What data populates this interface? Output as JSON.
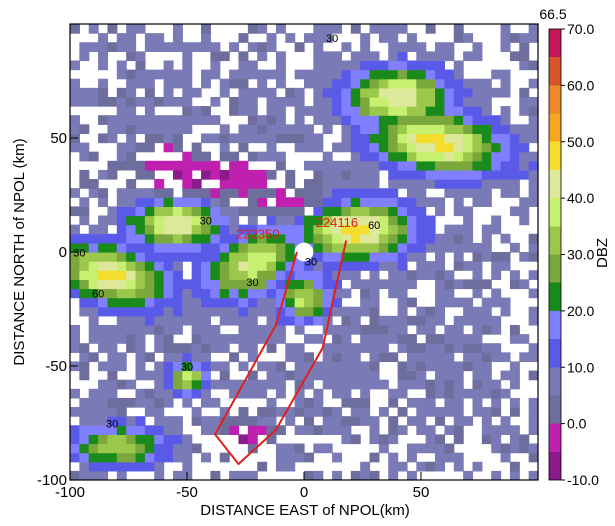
{
  "chart_data": {
    "type": "heatmap",
    "xlabel": "DISTANCE EAST of NPOL(km)",
    "ylabel": "DISTANCE NORTH of NPOL (km)",
    "xlim": [
      -100,
      100
    ],
    "ylim": [
      -100,
      100
    ],
    "xticks": [
      -100,
      -50,
      0,
      50
    ],
    "yticks": [
      -100,
      -50,
      0,
      50
    ],
    "colorbar": {
      "label": "DBZ",
      "max_label": "66.5",
      "range": [
        -10,
        70
      ],
      "tick_values": [
        70,
        60,
        50,
        40,
        30,
        20,
        10,
        0,
        -10
      ],
      "tick_labels": [
        "70.0",
        "60.0",
        "50.0",
        "40.0",
        "30.0",
        "20.0",
        "10.0",
        "0.0",
        "-10.0"
      ],
      "bins": [
        {
          "from": -10,
          "to": -5,
          "color": "#8b1a8b"
        },
        {
          "from": -5,
          "to": 0,
          "color": "#c020b0"
        },
        {
          "from": 0,
          "to": 5,
          "color": "#6e6e9e"
        },
        {
          "from": 5,
          "to": 10,
          "color": "#7a7ab6"
        },
        {
          "from": 10,
          "to": 15,
          "color": "#5a5ae8"
        },
        {
          "from": 15,
          "to": 20,
          "color": "#7f7fff"
        },
        {
          "from": 20,
          "to": 25,
          "color": "#1a8a1a"
        },
        {
          "from": 25,
          "to": 30,
          "color": "#7aa83c"
        },
        {
          "from": 30,
          "to": 35,
          "color": "#9bc84a"
        },
        {
          "from": 35,
          "to": 40,
          "color": "#c8f070"
        },
        {
          "from": 40,
          "to": 45,
          "color": "#dde89a"
        },
        {
          "from": 45,
          "to": 50,
          "color": "#f4dd2c"
        },
        {
          "from": 50,
          "to": 55,
          "color": "#f5a623"
        },
        {
          "from": 55,
          "to": 60,
          "color": "#ee8a2a"
        },
        {
          "from": 60,
          "to": 65,
          "color": "#d8552a"
        },
        {
          "from": 65,
          "to": 70,
          "color": "#c2185b"
        }
      ]
    },
    "storm_cells": [
      {
        "x": 22,
        "y": 10,
        "rx": 22,
        "ry": 12,
        "rot": 0,
        "dbz": 50
      },
      {
        "x": -55,
        "y": 13,
        "rx": 18,
        "ry": 10,
        "rot": 0,
        "dbz": 45
      },
      {
        "x": -82,
        "y": -10,
        "rx": 22,
        "ry": 11,
        "rot": -15,
        "dbz": 47
      },
      {
        "x": 40,
        "y": 68,
        "rx": 20,
        "ry": 12,
        "rot": 0,
        "dbz": 45
      },
      {
        "x": 57,
        "y": 48,
        "rx": 26,
        "ry": 12,
        "rot": -10,
        "dbz": 48
      },
      {
        "x": -22,
        "y": -5,
        "rx": 20,
        "ry": 12,
        "rot": 30,
        "dbz": 40
      },
      {
        "x": 0,
        "y": -20,
        "rx": 10,
        "ry": 10,
        "rot": 0,
        "dbz": 36
      },
      {
        "x": -50,
        "y": -55,
        "rx": 7,
        "ry": 6,
        "rot": 0,
        "dbz": 38
      },
      {
        "x": -80,
        "y": -85,
        "rx": 18,
        "ry": 8,
        "rot": 0,
        "dbz": 35
      }
    ],
    "low_reflectivity_zones": [
      {
        "x": -40,
        "y": 32,
        "rx": 30,
        "ry": 8,
        "rot": 0,
        "dbz": -7
      },
      {
        "x": -8,
        "y": 22,
        "rx": 18,
        "ry": 6,
        "rot": 0,
        "dbz": -3
      },
      {
        "x": -60,
        "y": 42,
        "rx": 10,
        "ry": 6,
        "rot": 0,
        "dbz": -7
      },
      {
        "x": -25,
        "y": -80,
        "rx": 8,
        "ry": 5,
        "rot": 0,
        "dbz": -7
      }
    ],
    "contour_labels": [
      {
        "text": "30",
        "x": -96,
        "y": -2
      },
      {
        "text": "30",
        "x": -42,
        "y": 12
      },
      {
        "text": "30",
        "x": -22,
        "y": -15
      },
      {
        "text": "30",
        "x": 3,
        "y": -6
      },
      {
        "text": "60",
        "x": -88,
        "y": -20
      },
      {
        "text": "60",
        "x": 30,
        "y": 10
      },
      {
        "text": "30",
        "x": 12,
        "y": 92
      },
      {
        "text": "30",
        "x": -50,
        "y": -52
      },
      {
        "text": "30",
        "x": -82,
        "y": -77
      }
    ],
    "flight_track": {
      "color": "#e0201b",
      "points": [
        [
          -3,
          0
        ],
        [
          -12,
          -32
        ],
        [
          -38,
          -80
        ],
        [
          -28,
          -93
        ],
        [
          -12,
          -78
        ],
        [
          8,
          -42
        ],
        [
          18,
          5
        ]
      ],
      "labels": [
        {
          "text": "222350",
          "x": -29,
          "y": 6
        },
        {
          "text": "224116",
          "x": 5,
          "y": 11
        }
      ]
    }
  }
}
